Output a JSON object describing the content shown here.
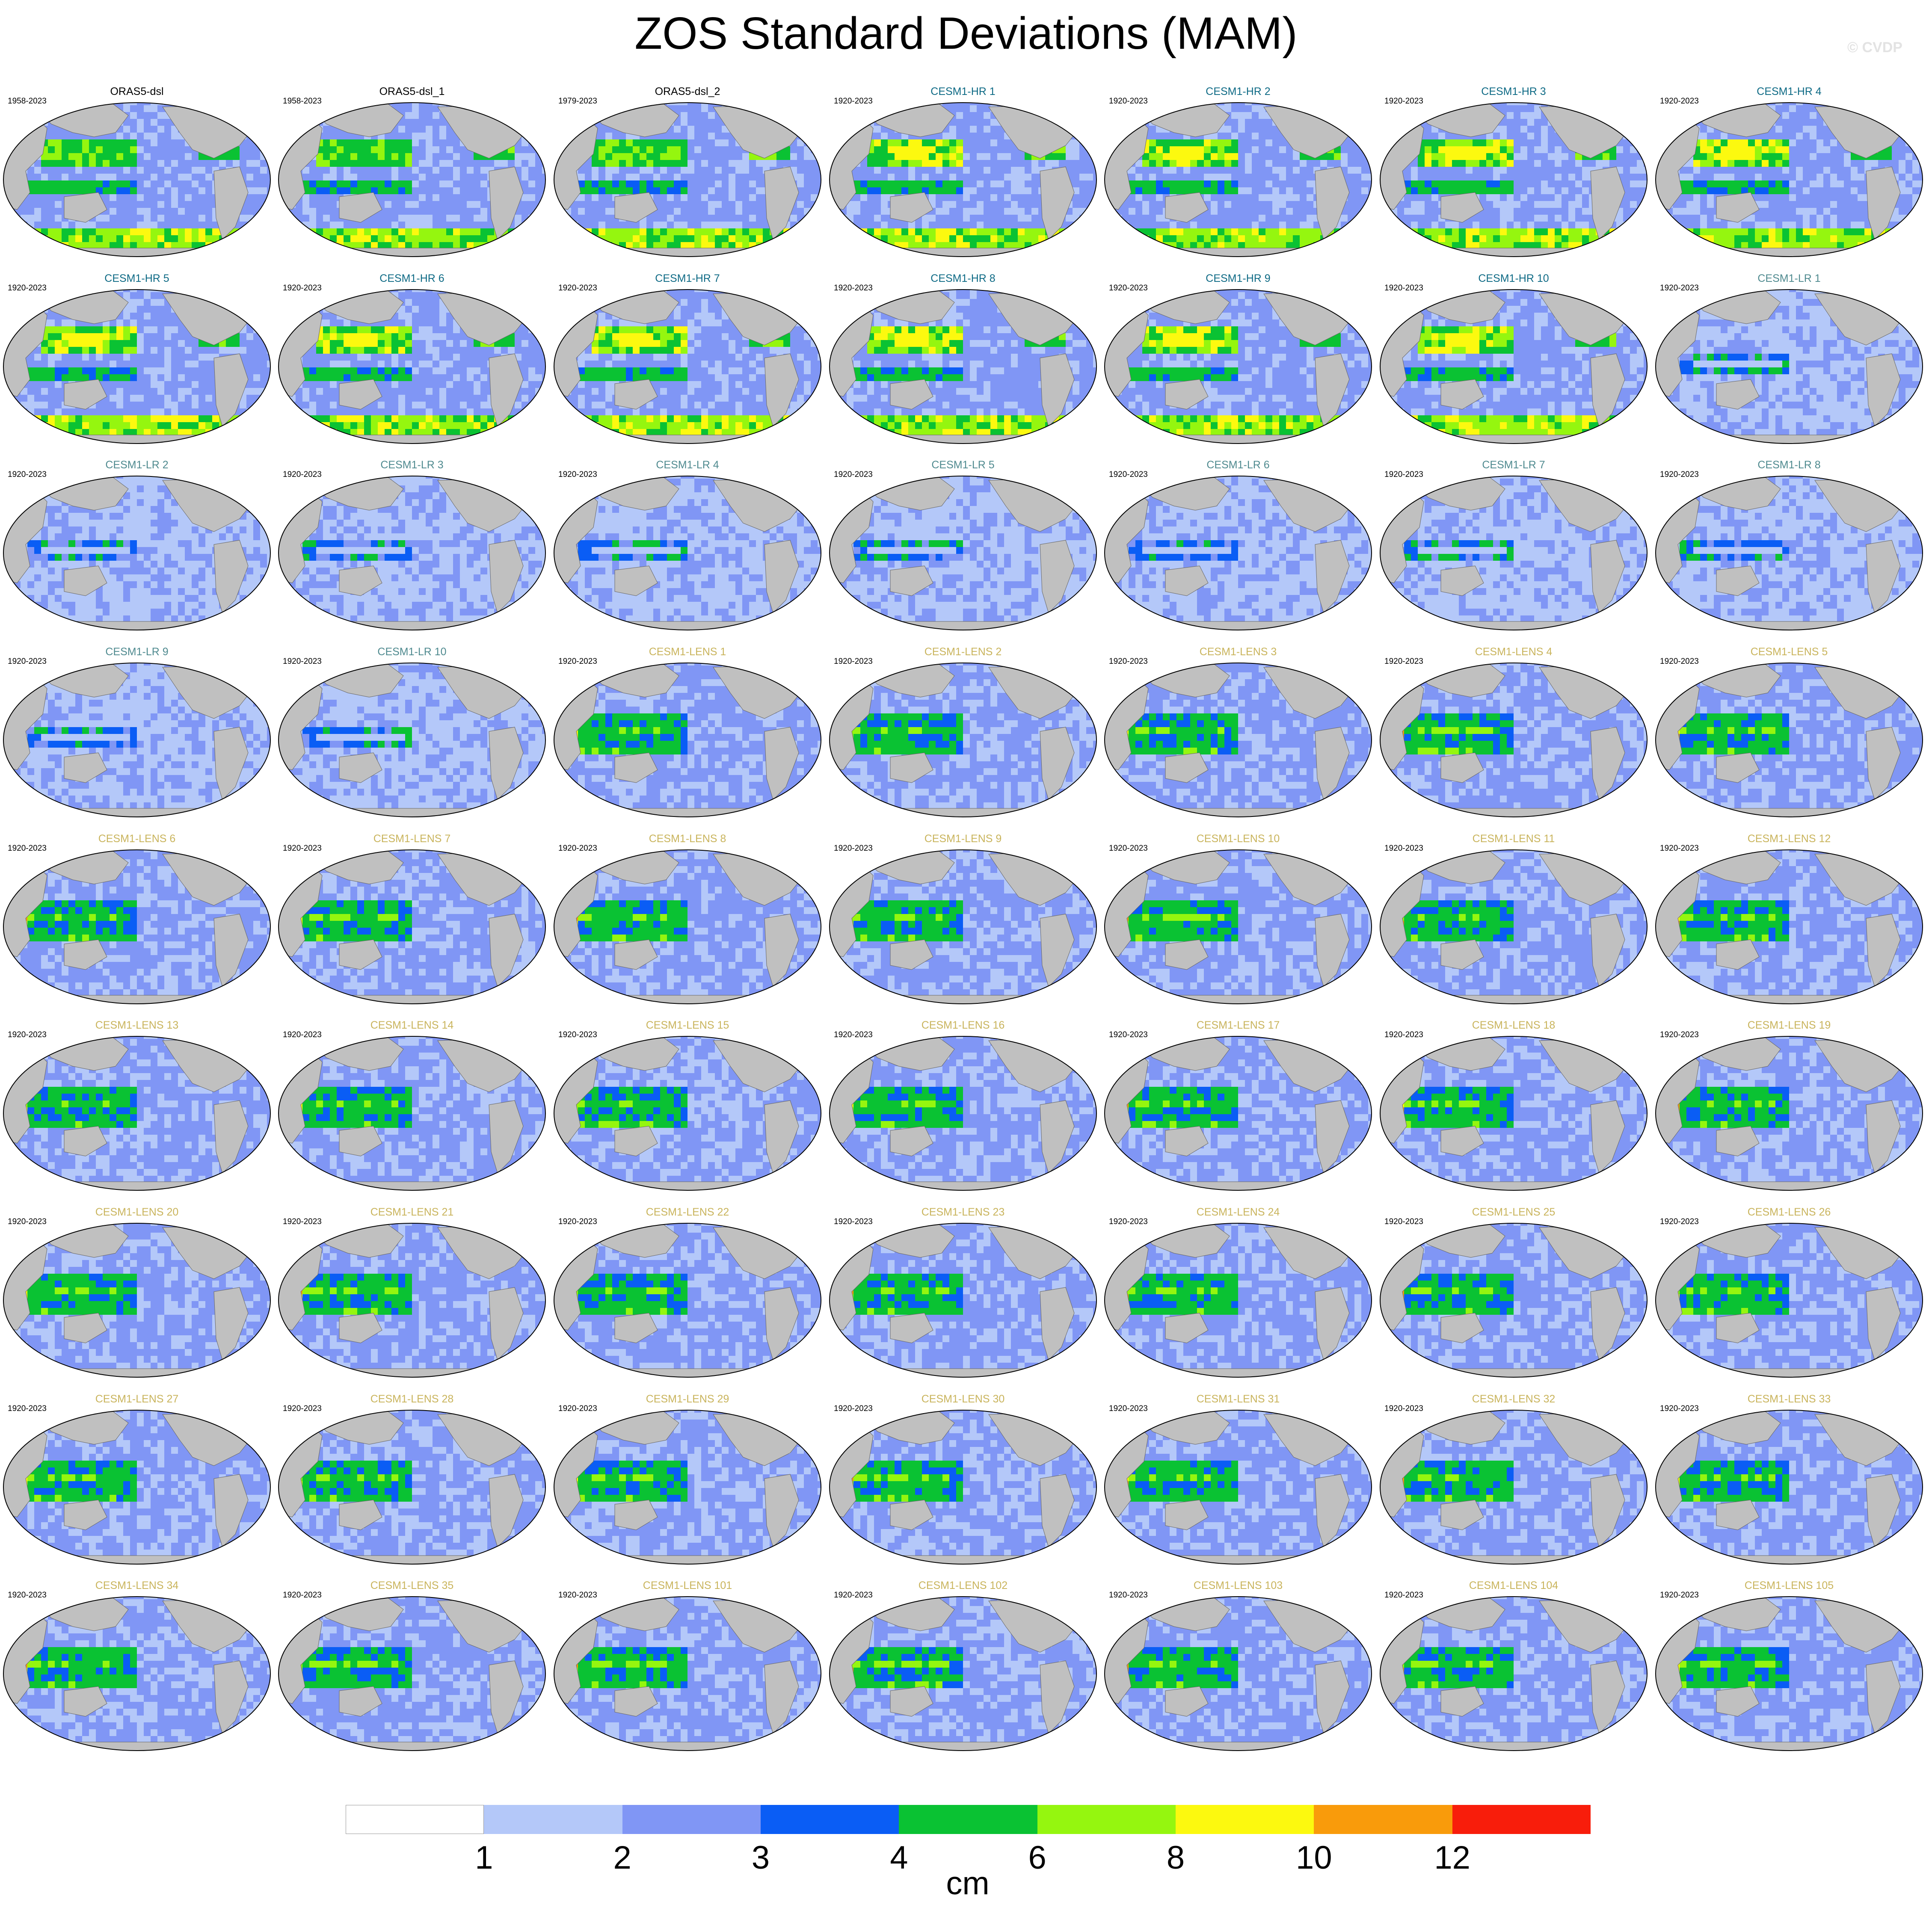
{
  "title": "ZOS Standard Deviations (MAM)",
  "watermark": "© CVDP",
  "colors": {
    "obs": "#000000",
    "hr": "#0e6a85",
    "lr": "#4f8a8f",
    "lens": "#c9b45c",
    "land": "#c0c0c0"
  },
  "panels": [
    {
      "label": "ORAS5-dsl",
      "period": "1958-2023",
      "group": "obs"
    },
    {
      "label": "ORAS5-dsl_1",
      "period": "1958-2023",
      "group": "obs"
    },
    {
      "label": "ORAS5-dsl_2",
      "period": "1979-2023",
      "group": "obs"
    },
    {
      "label": "CESM1-HR 1",
      "period": "1920-2023",
      "group": "hr"
    },
    {
      "label": "CESM1-HR 2",
      "period": "1920-2023",
      "group": "hr"
    },
    {
      "label": "CESM1-HR 3",
      "period": "1920-2023",
      "group": "hr"
    },
    {
      "label": "CESM1-HR 4",
      "period": "1920-2023",
      "group": "hr"
    },
    {
      "label": "CESM1-HR 5",
      "period": "1920-2023",
      "group": "hr"
    },
    {
      "label": "CESM1-HR 6",
      "period": "1920-2023",
      "group": "hr"
    },
    {
      "label": "CESM1-HR 7",
      "period": "1920-2023",
      "group": "hr"
    },
    {
      "label": "CESM1-HR 8",
      "period": "1920-2023",
      "group": "hr"
    },
    {
      "label": "CESM1-HR 9",
      "period": "1920-2023",
      "group": "hr"
    },
    {
      "label": "CESM1-HR 10",
      "period": "1920-2023",
      "group": "hr"
    },
    {
      "label": "CESM1-LR 1",
      "period": "1920-2023",
      "group": "lr"
    },
    {
      "label": "CESM1-LR 2",
      "period": "1920-2023",
      "group": "lr"
    },
    {
      "label": "CESM1-LR 3",
      "period": "1920-2023",
      "group": "lr"
    },
    {
      "label": "CESM1-LR 4",
      "period": "1920-2023",
      "group": "lr"
    },
    {
      "label": "CESM1-LR 5",
      "period": "1920-2023",
      "group": "lr"
    },
    {
      "label": "CESM1-LR 6",
      "period": "1920-2023",
      "group": "lr"
    },
    {
      "label": "CESM1-LR 7",
      "period": "1920-2023",
      "group": "lr"
    },
    {
      "label": "CESM1-LR 8",
      "period": "1920-2023",
      "group": "lr"
    },
    {
      "label": "CESM1-LR 9",
      "period": "1920-2023",
      "group": "lr"
    },
    {
      "label": "CESM1-LR 10",
      "period": "1920-2023",
      "group": "lr"
    },
    {
      "label": "CESM1-LENS 1",
      "period": "1920-2023",
      "group": "lens"
    },
    {
      "label": "CESM1-LENS 2",
      "period": "1920-2023",
      "group": "lens"
    },
    {
      "label": "CESM1-LENS 3",
      "period": "1920-2023",
      "group": "lens"
    },
    {
      "label": "CESM1-LENS 4",
      "period": "1920-2023",
      "group": "lens"
    },
    {
      "label": "CESM1-LENS 5",
      "period": "1920-2023",
      "group": "lens"
    },
    {
      "label": "CESM1-LENS 6",
      "period": "1920-2023",
      "group": "lens"
    },
    {
      "label": "CESM1-LENS 7",
      "period": "1920-2023",
      "group": "lens"
    },
    {
      "label": "CESM1-LENS 8",
      "period": "1920-2023",
      "group": "lens"
    },
    {
      "label": "CESM1-LENS 9",
      "period": "1920-2023",
      "group": "lens"
    },
    {
      "label": "CESM1-LENS 10",
      "period": "1920-2023",
      "group": "lens"
    },
    {
      "label": "CESM1-LENS 11",
      "period": "1920-2023",
      "group": "lens"
    },
    {
      "label": "CESM1-LENS 12",
      "period": "1920-2023",
      "group": "lens"
    },
    {
      "label": "CESM1-LENS 13",
      "period": "1920-2023",
      "group": "lens"
    },
    {
      "label": "CESM1-LENS 14",
      "period": "1920-2023",
      "group": "lens"
    },
    {
      "label": "CESM1-LENS 15",
      "period": "1920-2023",
      "group": "lens"
    },
    {
      "label": "CESM1-LENS 16",
      "period": "1920-2023",
      "group": "lens"
    },
    {
      "label": "CESM1-LENS 17",
      "period": "1920-2023",
      "group": "lens"
    },
    {
      "label": "CESM1-LENS 18",
      "period": "1920-2023",
      "group": "lens"
    },
    {
      "label": "CESM1-LENS 19",
      "period": "1920-2023",
      "group": "lens"
    },
    {
      "label": "CESM1-LENS 20",
      "period": "1920-2023",
      "group": "lens"
    },
    {
      "label": "CESM1-LENS 21",
      "period": "1920-2023",
      "group": "lens"
    },
    {
      "label": "CESM1-LENS 22",
      "period": "1920-2023",
      "group": "lens"
    },
    {
      "label": "CESM1-LENS 23",
      "period": "1920-2023",
      "group": "lens"
    },
    {
      "label": "CESM1-LENS 24",
      "period": "1920-2023",
      "group": "lens"
    },
    {
      "label": "CESM1-LENS 25",
      "period": "1920-2023",
      "group": "lens"
    },
    {
      "label": "CESM1-LENS 26",
      "period": "1920-2023",
      "group": "lens"
    },
    {
      "label": "CESM1-LENS 27",
      "period": "1920-2023",
      "group": "lens"
    },
    {
      "label": "CESM1-LENS 28",
      "period": "1920-2023",
      "group": "lens"
    },
    {
      "label": "CESM1-LENS 29",
      "period": "1920-2023",
      "group": "lens"
    },
    {
      "label": "CESM1-LENS 30",
      "period": "1920-2023",
      "group": "lens"
    },
    {
      "label": "CESM1-LENS 31",
      "period": "1920-2023",
      "group": "lens"
    },
    {
      "label": "CESM1-LENS 32",
      "period": "1920-2023",
      "group": "lens"
    },
    {
      "label": "CESM1-LENS 33",
      "period": "1920-2023",
      "group": "lens"
    },
    {
      "label": "CESM1-LENS 34",
      "period": "1920-2023",
      "group": "lens"
    },
    {
      "label": "CESM1-LENS 35",
      "period": "1920-2023",
      "group": "lens"
    },
    {
      "label": "CESM1-LENS 101",
      "period": "1920-2023",
      "group": "lens"
    },
    {
      "label": "CESM1-LENS 102",
      "period": "1920-2023",
      "group": "lens"
    },
    {
      "label": "CESM1-LENS 103",
      "period": "1920-2023",
      "group": "lens"
    },
    {
      "label": "CESM1-LENS 104",
      "period": "1920-2023",
      "group": "lens"
    },
    {
      "label": "CESM1-LENS 105",
      "period": "1920-2023",
      "group": "lens"
    }
  ],
  "colorbar": {
    "colors": [
      "#ffffff",
      "#b4c8f9",
      "#8096f5",
      "#0a5df5",
      "#0ac233",
      "#95f60f",
      "#fcf90f",
      "#f99b0b",
      "#f81d0b"
    ],
    "tick_labels": [
      "1",
      "2",
      "3",
      "4",
      "6",
      "8",
      "10",
      "12"
    ],
    "unit": "cm"
  }
}
